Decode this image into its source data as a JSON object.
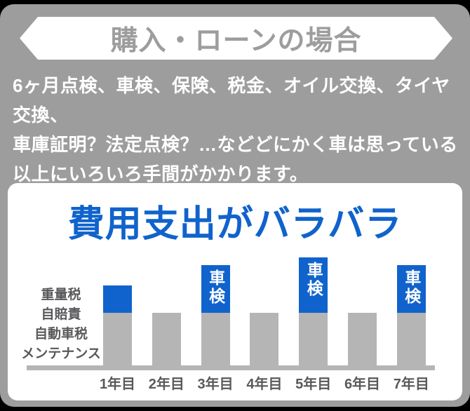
{
  "banner": {
    "label": "購入・ローンの場合"
  },
  "intro": {
    "lines": [
      "6ヶ月点検、車検、保険、税金、オイル交換、タイヤ交換、",
      "車庫証明？法定点検？…などどにかく車は思っている",
      "以上にいろいろ手間がかかります。"
    ]
  },
  "card": {
    "title": "費用支出がバラバラ"
  },
  "chart_data": {
    "type": "bar",
    "stacked": true,
    "title": "費用支出がバラバラ",
    "categories": [
      "1年目",
      "2年目",
      "3年目",
      "4年目",
      "5年目",
      "6年目",
      "7年目"
    ],
    "left_labels": [
      "重量税",
      "自賠責",
      "自動車税",
      "メンテナンス"
    ],
    "series": [
      {
        "name": "重量税・自賠責・自動車税・メンテナンス",
        "color": "#b5b5b5",
        "values": [
          75,
          75,
          75,
          75,
          75,
          75,
          75
        ]
      },
      {
        "name": "車検",
        "color": "#1063cc",
        "values": [
          39,
          0,
          68,
          0,
          79,
          0,
          68
        ]
      }
    ],
    "bar_labels": [
      "",
      "",
      "車検",
      "",
      "車検",
      "",
      "車検"
    ],
    "unit": "relative bar height in px (chart shows no numeric axis)",
    "xlabel": "",
    "ylabel": "",
    "grid": false,
    "legend_position": "left"
  },
  "colors": {
    "page_edge": "#000000",
    "background_gray": "#9d9d9d",
    "banner_bg": "#ffffff",
    "banner_text": "#9d9d9d",
    "intro_text": "#ffffff",
    "card_bg": "#ffffff",
    "title_blue": "#1063cc",
    "bar_gray": "#b5b5b5",
    "bar_blue": "#1063cc",
    "axis_text": "#58595b",
    "kensha_text": "#ffffff"
  }
}
